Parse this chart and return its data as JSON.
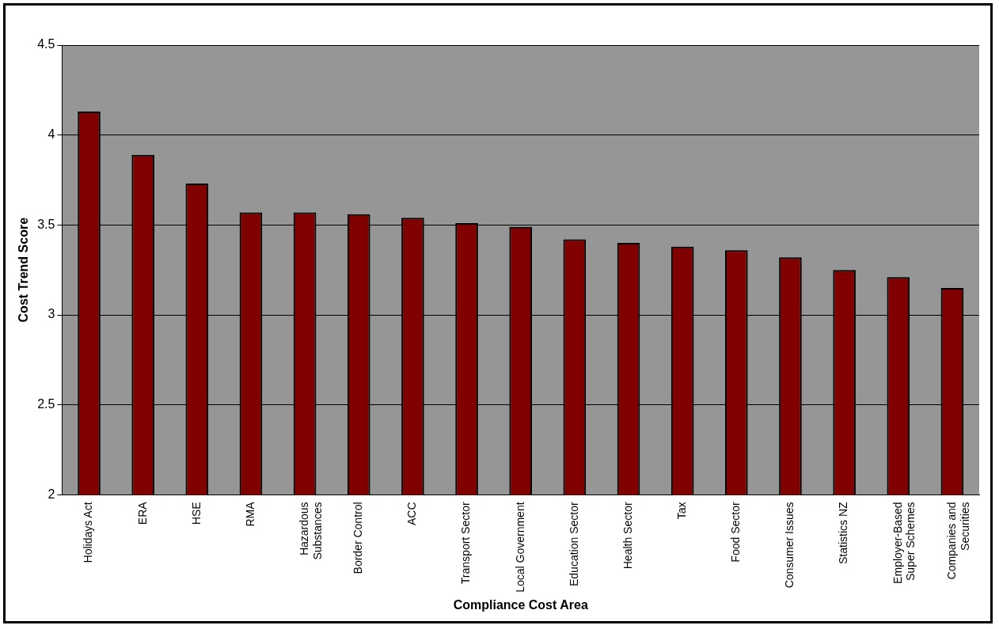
{
  "chart_data": {
    "type": "bar",
    "xlabel": "Compliance Cost Area",
    "ylabel": "Cost Trend Score",
    "categories": [
      "Holidays Act",
      "ERA",
      "HSE",
      "RMA",
      "Hazardous\nSubstances",
      "Border Control",
      "ACC",
      "Transport Sector",
      "Local Government",
      "Education Sector",
      "Health Sector",
      "Tax",
      "Food Sector",
      "Consumer Issues",
      "Statistics NZ",
      "Employer-Based\nSuper Schemes",
      "Companies and\nSecurities"
    ],
    "values": [
      4.13,
      3.89,
      3.73,
      3.57,
      3.57,
      3.56,
      3.54,
      3.51,
      3.49,
      3.42,
      3.4,
      3.38,
      3.36,
      3.32,
      3.25,
      3.21,
      3.15
    ],
    "color": "#800000",
    "ylim": [
      2,
      4.5
    ],
    "yticks": [
      2,
      2.5,
      3,
      3.5,
      4,
      4.5
    ],
    "grid": "y",
    "legend": false
  }
}
